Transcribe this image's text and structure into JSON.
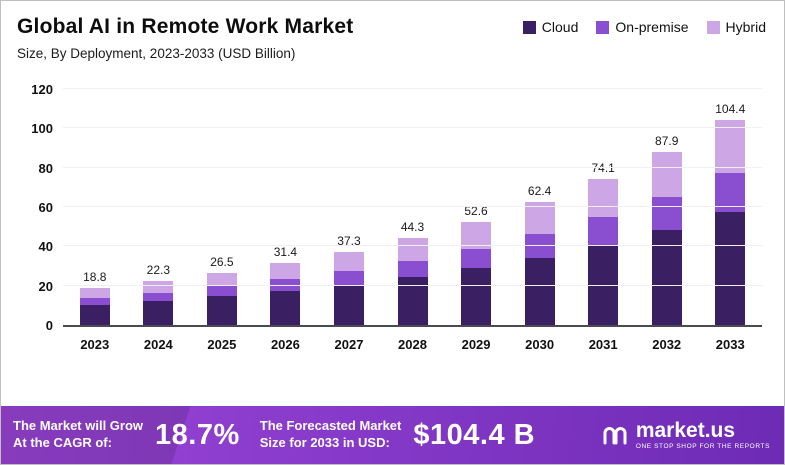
{
  "header": {
    "title": "Global AI in Remote Work Market",
    "subtitle": "Size, By Deployment, 2023-2033 (USD Billion)"
  },
  "chart_data": {
    "type": "bar",
    "stacked": true,
    "title": "Global AI in Remote Work Market",
    "subtitle": "Size, By Deployment, 2023-2033 (USD Billion)",
    "categories": [
      "2023",
      "2024",
      "2025",
      "2026",
      "2027",
      "2028",
      "2029",
      "2030",
      "2031",
      "2032",
      "2033"
    ],
    "totals": [
      18.8,
      22.3,
      26.5,
      31.4,
      37.3,
      44.3,
      52.6,
      62.4,
      74.1,
      87.9,
      104.4
    ],
    "series": [
      {
        "name": "Cloud",
        "color": "#3a2063",
        "values": [
          10.3,
          12.3,
          14.6,
          17.3,
          20.5,
          24.4,
          28.9,
          34.3,
          40.8,
          48.3,
          57.4
        ]
      },
      {
        "name": "On-premise",
        "color": "#8a4fd0",
        "values": [
          3.6,
          4.2,
          5.0,
          6.0,
          7.1,
          8.4,
          10.0,
          11.9,
          14.1,
          16.7,
          19.8
        ]
      },
      {
        "name": "Hybrid",
        "color": "#cda7e5",
        "values": [
          4.9,
          5.8,
          6.9,
          8.1,
          9.7,
          11.5,
          13.7,
          16.2,
          19.2,
          22.9,
          27.2
        ]
      }
    ],
    "ylim": [
      0,
      120
    ],
    "yticks": [
      0,
      20,
      40,
      60,
      80,
      100,
      120
    ],
    "xlabel": "",
    "ylabel": "",
    "grid": true,
    "legend_position": "top-right"
  },
  "banner": {
    "cagr_label_line1": "The Market will Grow",
    "cagr_label_line2": "At the CAGR of:",
    "cagr_value": "18.7%",
    "forecast_label_line1": "The Forecasted Market",
    "forecast_label_line2": "Size for 2033 in USD:",
    "forecast_value": "$104.4 B",
    "brand": "market.us",
    "brand_tagline": "ONE STOP SHOP FOR THE REPORTS",
    "background_start": "#9b45d8",
    "background_end": "#6d2bb5"
  }
}
